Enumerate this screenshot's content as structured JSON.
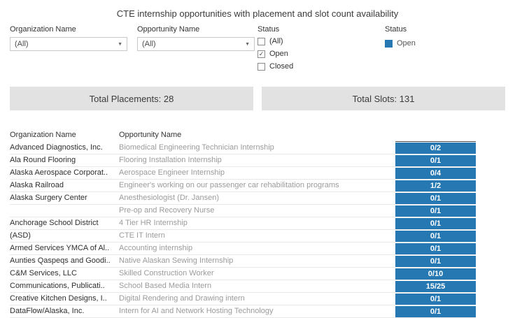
{
  "title": "CTE internship opportunities with placement and slot count availability",
  "colors": {
    "accent": "#2678b2"
  },
  "filters": {
    "organization": {
      "label": "Organization Name",
      "value": "(All)"
    },
    "opportunity": {
      "label": "Opportunity Name",
      "value": "(All)"
    },
    "status": {
      "label": "Status",
      "options": [
        {
          "label": "(All)",
          "checked": false
        },
        {
          "label": "Open",
          "checked": true
        },
        {
          "label": "Closed",
          "checked": false
        }
      ]
    }
  },
  "legend": {
    "title": "Status",
    "items": [
      {
        "label": "Open",
        "color": "#2678b2"
      }
    ]
  },
  "summary": {
    "placements_label": "Total Placements: 28",
    "slots_label": "Total Slots: 131"
  },
  "table": {
    "headers": {
      "organization": "Organization Name",
      "opportunity": "Opportunity Name"
    },
    "rows": [
      {
        "org": "Advanced Diagnostics, Inc.",
        "opp": "Biomedical Engineering Technician Internship",
        "count": "0/2"
      },
      {
        "org": "Ala Round Flooring",
        "opp": "Flooring Installation Internship",
        "count": "0/1"
      },
      {
        "org": "Alaska Aerospace Corporat..",
        "opp": "Aerospace Engineer Internship",
        "count": "0/4"
      },
      {
        "org": "Alaska Railroad",
        "opp": "Engineer's working on our passenger car rehabilitation programs",
        "count": "1/2"
      },
      {
        "org": "Alaska Surgery Center",
        "opp": "Anesthesiologist (Dr. Jansen)",
        "count": "0/1"
      },
      {
        "org": "",
        "opp": "Pre-op and Recovery Nurse",
        "count": "0/1"
      },
      {
        "org": "Anchorage School District",
        "opp": "4 Tier HR Internship",
        "count": "0/1"
      },
      {
        "org": "(ASD)",
        "opp": "CTE IT Intern",
        "count": "0/1"
      },
      {
        "org": "Armed Services YMCA of Al..",
        "opp": "Accounting internship",
        "count": "0/1"
      },
      {
        "org": "Aunties Qaspeqs and Goodi..",
        "opp": "Native Alaskan Sewing Internship",
        "count": "0/1"
      },
      {
        "org": "C&M Services, LLC",
        "opp": "Skilled Construction Worker",
        "count": "0/10"
      },
      {
        "org": "Communications, Publicati..",
        "opp": "School Based Media Intern",
        "count": "15/25"
      },
      {
        "org": "Creative Kitchen Designs, I..",
        "opp": "Digital Rendering and Drawing intern",
        "count": "0/1"
      },
      {
        "org": "DataFlow/Alaska, Inc.",
        "opp": "Intern for AI and Network Hosting Technology",
        "count": "0/1"
      }
    ]
  }
}
